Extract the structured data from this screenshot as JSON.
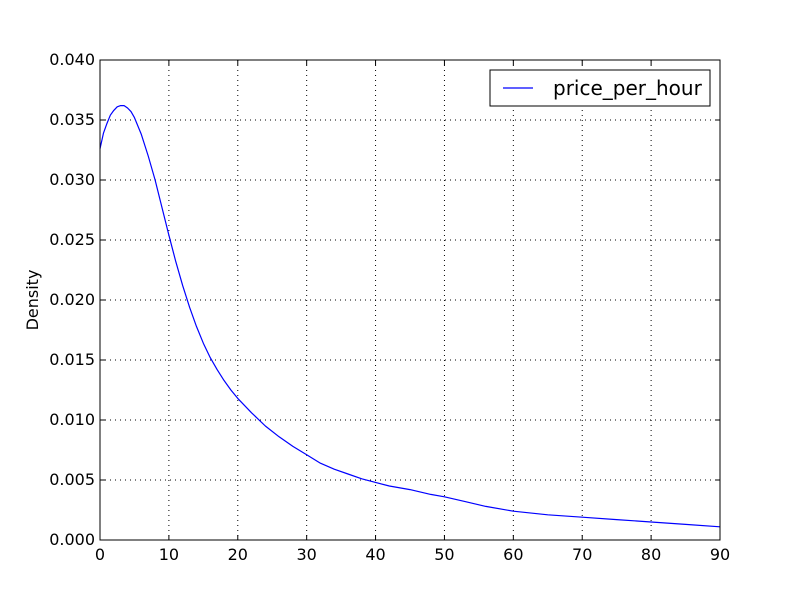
{
  "chart_data": {
    "type": "line",
    "title": "",
    "xlabel": "",
    "ylabel": "Density",
    "xlim": [
      0,
      90
    ],
    "ylim": [
      0,
      0.04
    ],
    "xticks": [
      0,
      10,
      20,
      30,
      40,
      50,
      60,
      70,
      80,
      90
    ],
    "yticks": [
      0,
      0.005,
      0.01,
      0.015,
      0.02,
      0.025,
      0.03,
      0.035,
      0.04
    ],
    "xtick_labels": [
      "0",
      "10",
      "20",
      "30",
      "40",
      "50",
      "60",
      "70",
      "80",
      "90"
    ],
    "ytick_labels": [
      "0.000",
      "0.005",
      "0.010",
      "0.015",
      "0.020",
      "0.025",
      "0.030",
      "0.035",
      "0.040"
    ],
    "grid": true,
    "legend_position": "top-right",
    "series": [
      {
        "name": "price_per_hour",
        "color": "#0000ff",
        "x": [
          0,
          0.5,
          1,
          1.5,
          2,
          2.5,
          3,
          3.5,
          4,
          4.5,
          5,
          6,
          7,
          8,
          9,
          10,
          11,
          12,
          13,
          14,
          15,
          16,
          17,
          18,
          19,
          20,
          22,
          24,
          26,
          28,
          30,
          32,
          34,
          36,
          38,
          40,
          42,
          45,
          48,
          50,
          53,
          56,
          60,
          65,
          70,
          75,
          80,
          85,
          90
        ],
        "y": [
          0.0326,
          0.0339,
          0.0347,
          0.0354,
          0.0358,
          0.0361,
          0.0362,
          0.0362,
          0.036,
          0.0357,
          0.0352,
          0.0338,
          0.032,
          0.03,
          0.0277,
          0.0254,
          0.0232,
          0.0212,
          0.0194,
          0.0178,
          0.0164,
          0.0152,
          0.0142,
          0.0133,
          0.0125,
          0.0118,
          0.0106,
          0.0095,
          0.0086,
          0.0078,
          0.0071,
          0.0064,
          0.0059,
          0.0055,
          0.0051,
          0.0048,
          0.0045,
          0.0042,
          0.0038,
          0.0036,
          0.0032,
          0.0028,
          0.0024,
          0.0021,
          0.0019,
          0.0017,
          0.0015,
          0.0013,
          0.0011
        ]
      }
    ]
  }
}
